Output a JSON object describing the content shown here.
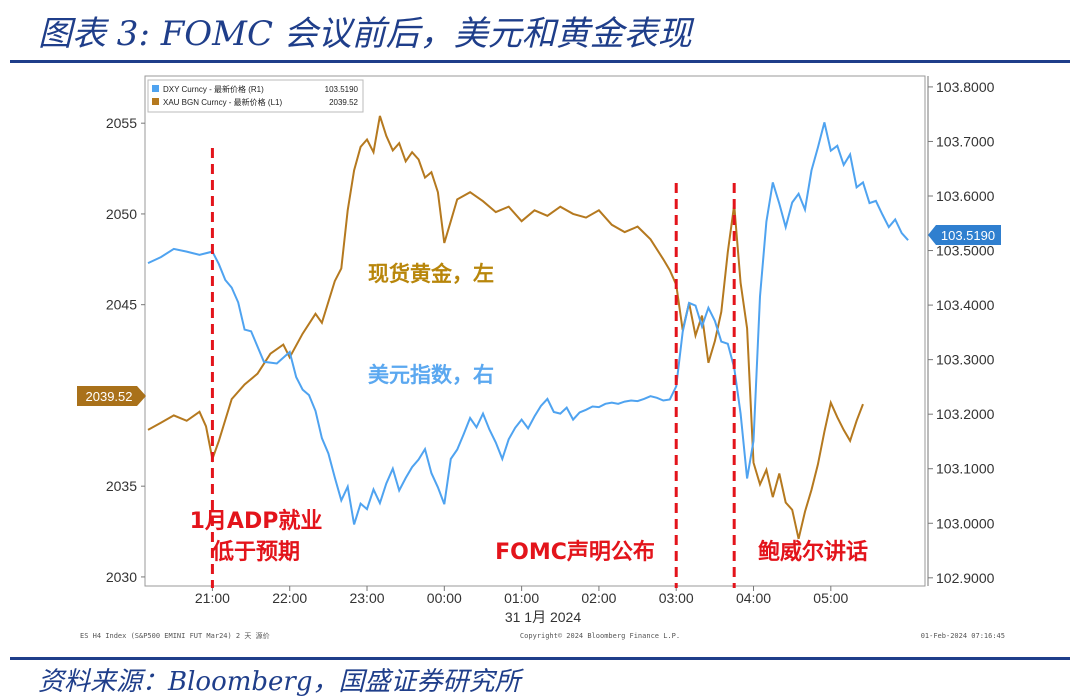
{
  "header": {
    "title": "图表 3:  FOMC 会议前后，美元和黄金表现"
  },
  "footer": {
    "source": "资料来源：Bloomberg，国盛证券研究所",
    "bloomberg_left": "ES H4 Index (S&P500 EMINI FUT Mar24) 2 天 源价",
    "bloomberg_center": "Copyright© 2024 Bloomberg Finance L.P.",
    "bloomberg_right": "01-Feb-2024 07:16:45"
  },
  "chart_data": {
    "type": "line",
    "x_labels": [
      "21:00",
      "22:00",
      "23:00",
      "00:00",
      "01:00",
      "02:00",
      "03:00",
      "04:00",
      "05:00"
    ],
    "x_date_label": "31 1月 2024",
    "y_left": {
      "ticks": [
        "2055",
        "2050",
        "2045",
        "2040",
        "2035",
        "2030"
      ],
      "range": [
        2029.5,
        2057.6
      ]
    },
    "y_right": {
      "ticks": [
        "103.8000",
        "103.7000",
        "103.6000",
        "103.5000",
        "103.4000",
        "103.3000",
        "103.2000",
        "103.1000",
        "103.0000",
        "102.9000"
      ],
      "range": [
        102.885,
        103.82
      ]
    },
    "legend": [
      {
        "name": "DXY Curncy - 最新价格 (R1)",
        "value": "103.5190",
        "color": "#4fa3f0"
      },
      {
        "name": "XAU BGN Curncy - 最新价格 (L1)",
        "value": "2039.52",
        "color": "#b5791f"
      }
    ],
    "last_values": {
      "gold": "2039.52",
      "dxy": "103.5190"
    },
    "series": [
      {
        "name": "XAU BGN Curncy",
        "axis": "left",
        "color": "#b5791f",
        "points": [
          [
            "20:10",
            2038.1
          ],
          [
            "20:20",
            2038.5
          ],
          [
            "20:30",
            2038.9
          ],
          [
            "20:40",
            2038.6
          ],
          [
            "20:50",
            2039.1
          ],
          [
            "20:55",
            2038.3
          ],
          [
            "21:00",
            2036.5
          ],
          [
            "21:05",
            2037.5
          ],
          [
            "21:15",
            2039.8
          ],
          [
            "21:25",
            2040.6
          ],
          [
            "21:35",
            2041.2
          ],
          [
            "21:45",
            2042.3
          ],
          [
            "21:55",
            2042.8
          ],
          [
            "22:00",
            2042.1
          ],
          [
            "22:10",
            2043.4
          ],
          [
            "22:20",
            2044.5
          ],
          [
            "22:25",
            2044.0
          ],
          [
            "22:35",
            2046.3
          ],
          [
            "22:40",
            2047.0
          ],
          [
            "22:45",
            2050.2
          ],
          [
            "22:50",
            2052.4
          ],
          [
            "22:55",
            2053.7
          ],
          [
            "23:00",
            2054.1
          ],
          [
            "23:05",
            2053.4
          ],
          [
            "23:10",
            2055.4
          ],
          [
            "23:15",
            2054.3
          ],
          [
            "23:20",
            2053.5
          ],
          [
            "23:25",
            2053.9
          ],
          [
            "23:30",
            2052.9
          ],
          [
            "23:35",
            2053.4
          ],
          [
            "23:40",
            2053.0
          ],
          [
            "23:45",
            2052.0
          ],
          [
            "23:50",
            2052.3
          ],
          [
            "23:55",
            2051.2
          ],
          [
            "00:00",
            2048.4
          ],
          [
            "00:05",
            2049.6
          ],
          [
            "00:10",
            2050.8
          ],
          [
            "00:20",
            2051.2
          ],
          [
            "00:30",
            2050.7
          ],
          [
            "00:40",
            2050.1
          ],
          [
            "00:50",
            2050.4
          ],
          [
            "01:00",
            2049.6
          ],
          [
            "01:10",
            2050.2
          ],
          [
            "01:20",
            2049.9
          ],
          [
            "01:30",
            2050.4
          ],
          [
            "01:40",
            2050.0
          ],
          [
            "01:50",
            2049.8
          ],
          [
            "02:00",
            2050.2
          ],
          [
            "02:10",
            2049.4
          ],
          [
            "02:20",
            2049.0
          ],
          [
            "02:30",
            2049.3
          ],
          [
            "02:40",
            2048.6
          ],
          [
            "02:50",
            2047.5
          ],
          [
            "02:55",
            2046.9
          ],
          [
            "03:00",
            2046.1
          ],
          [
            "03:05",
            2043.6
          ],
          [
            "03:10",
            2045.1
          ],
          [
            "03:15",
            2043.3
          ],
          [
            "03:20",
            2044.4
          ],
          [
            "03:25",
            2041.8
          ],
          [
            "03:30",
            2043.0
          ],
          [
            "03:35",
            2044.6
          ],
          [
            "03:40",
            2047.9
          ],
          [
            "03:45",
            2050.5
          ],
          [
            "03:50",
            2046.2
          ],
          [
            "03:55",
            2043.7
          ],
          [
            "04:00",
            2036.3
          ],
          [
            "04:05",
            2035.1
          ],
          [
            "04:10",
            2035.9
          ],
          [
            "04:15",
            2034.4
          ],
          [
            "04:20",
            2035.7
          ],
          [
            "04:25",
            2034.1
          ],
          [
            "04:30",
            2033.7
          ],
          [
            "04:35",
            2032.1
          ],
          [
            "04:40",
            2033.6
          ],
          [
            "04:45",
            2034.8
          ],
          [
            "04:50",
            2036.2
          ],
          [
            "04:55",
            2038.0
          ],
          [
            "05:00",
            2039.6
          ],
          [
            "05:05",
            2038.8
          ],
          [
            "05:10",
            2038.1
          ],
          [
            "05:15",
            2037.5
          ],
          [
            "05:20",
            2038.6
          ],
          [
            "05:25",
            2039.52
          ]
        ]
      },
      {
        "name": "DXY Curncy",
        "axis": "right",
        "color": "#4fa3f0",
        "points": [
          [
            "20:10",
            103.477
          ],
          [
            "20:20",
            103.488
          ],
          [
            "20:30",
            103.503
          ],
          [
            "20:40",
            103.498
          ],
          [
            "20:50",
            103.492
          ],
          [
            "21:00",
            103.498
          ],
          [
            "21:05",
            103.475
          ],
          [
            "21:10",
            103.446
          ],
          [
            "21:15",
            103.432
          ],
          [
            "21:20",
            103.405
          ],
          [
            "21:25",
            103.355
          ],
          [
            "21:30",
            103.352
          ],
          [
            "21:40",
            103.296
          ],
          [
            "21:50",
            103.293
          ],
          [
            "22:00",
            103.314
          ],
          [
            "22:05",
            103.268
          ],
          [
            "22:10",
            103.245
          ],
          [
            "22:15",
            103.235
          ],
          [
            "22:20",
            103.206
          ],
          [
            "22:25",
            103.156
          ],
          [
            "22:30",
            103.128
          ],
          [
            "22:35",
            103.084
          ],
          [
            "22:40",
            103.042
          ],
          [
            "22:45",
            103.067
          ],
          [
            "22:50",
            102.998
          ],
          [
            "22:55",
            103.036
          ],
          [
            "23:00",
            103.026
          ],
          [
            "23:05",
            103.062
          ],
          [
            "23:10",
            103.037
          ],
          [
            "23:15",
            103.073
          ],
          [
            "23:20",
            103.1
          ],
          [
            "23:25",
            103.06
          ],
          [
            "23:30",
            103.083
          ],
          [
            "23:35",
            103.103
          ],
          [
            "23:40",
            103.117
          ],
          [
            "23:45",
            103.136
          ],
          [
            "23:50",
            103.092
          ],
          [
            "23:55",
            103.066
          ],
          [
            "00:00",
            103.035
          ],
          [
            "00:05",
            103.118
          ],
          [
            "00:10",
            103.135
          ],
          [
            "00:15",
            103.163
          ],
          [
            "00:20",
            103.193
          ],
          [
            "00:25",
            103.176
          ],
          [
            "00:30",
            103.201
          ],
          [
            "00:35",
            103.172
          ],
          [
            "00:40",
            103.148
          ],
          [
            "00:45",
            103.118
          ],
          [
            "00:50",
            103.154
          ],
          [
            "00:55",
            103.175
          ],
          [
            "01:00",
            103.19
          ],
          [
            "01:05",
            103.174
          ],
          [
            "01:10",
            103.196
          ],
          [
            "01:15",
            103.215
          ],
          [
            "01:20",
            103.228
          ],
          [
            "01:25",
            103.204
          ],
          [
            "01:30",
            103.201
          ],
          [
            "01:35",
            103.212
          ],
          [
            "01:40",
            103.19
          ],
          [
            "01:45",
            103.203
          ],
          [
            "01:50",
            103.208
          ],
          [
            "01:55",
            103.214
          ],
          [
            "02:00",
            103.213
          ],
          [
            "02:05",
            103.219
          ],
          [
            "02:10",
            103.221
          ],
          [
            "02:15",
            103.219
          ],
          [
            "02:20",
            103.223
          ],
          [
            "02:25",
            103.225
          ],
          [
            "02:30",
            103.224
          ],
          [
            "02:35",
            103.228
          ],
          [
            "02:40",
            103.233
          ],
          [
            "02:45",
            103.23
          ],
          [
            "02:50",
            103.225
          ],
          [
            "02:55",
            103.227
          ],
          [
            "03:00",
            103.251
          ],
          [
            "03:05",
            103.351
          ],
          [
            "03:10",
            103.404
          ],
          [
            "03:15",
            103.399
          ],
          [
            "03:20",
            103.361
          ],
          [
            "03:25",
            103.395
          ],
          [
            "03:30",
            103.371
          ],
          [
            "03:35",
            103.333
          ],
          [
            "03:40",
            103.329
          ],
          [
            "03:45",
            103.285
          ],
          [
            "03:50",
            103.201
          ],
          [
            "03:55",
            103.082
          ],
          [
            "04:00",
            103.151
          ],
          [
            "04:05",
            103.416
          ],
          [
            "04:10",
            103.553
          ],
          [
            "04:15",
            103.625
          ],
          [
            "04:20",
            103.586
          ],
          [
            "04:25",
            103.543
          ],
          [
            "04:30",
            103.588
          ],
          [
            "04:35",
            103.604
          ],
          [
            "04:40",
            103.575
          ],
          [
            "04:45",
            103.647
          ],
          [
            "04:50",
            103.689
          ],
          [
            "04:55",
            103.735
          ],
          [
            "05:00",
            103.683
          ],
          [
            "05:05",
            103.692
          ],
          [
            "05:10",
            103.657
          ],
          [
            "05:15",
            103.676
          ],
          [
            "05:20",
            103.616
          ],
          [
            "05:25",
            103.625
          ],
          [
            "05:30",
            103.587
          ],
          [
            "05:35",
            103.591
          ],
          [
            "05:40",
            103.566
          ],
          [
            "05:45",
            103.543
          ],
          [
            "05:50",
            103.557
          ],
          [
            "05:55",
            103.532
          ],
          [
            "06:00",
            103.519
          ]
        ]
      }
    ],
    "vlines": [
      "21:00",
      "03:00",
      "03:45"
    ],
    "annotations": {
      "adp_line1": "1月ADP就业",
      "adp_line2": "低于预期",
      "fomc": "FOMC声明公布",
      "powell": "鲍威尔讲话",
      "gold_label": "现货黄金，左",
      "dxy_label": "美元指数，右"
    }
  }
}
